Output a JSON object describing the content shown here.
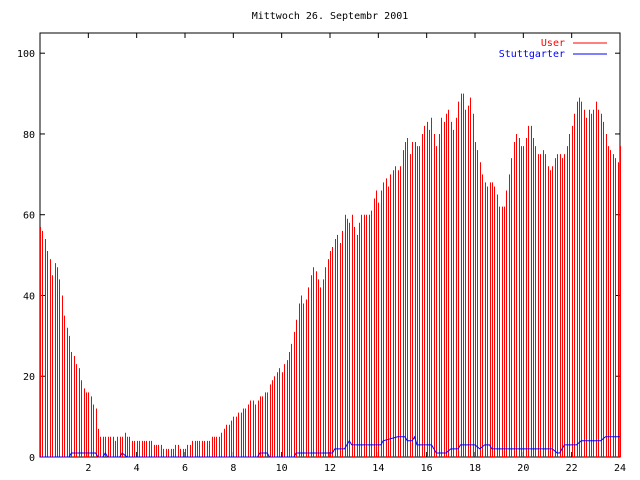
{
  "chart_data": {
    "type": "line",
    "title": "Mittwoch 26. Septembr 2001",
    "xlabel": "",
    "ylabel": "",
    "xlim": [
      0,
      24
    ],
    "ylim": [
      0,
      105
    ],
    "xticks": [
      2,
      4,
      6,
      8,
      10,
      12,
      14,
      16,
      18,
      20,
      22,
      24
    ],
    "yticks": [
      0,
      20,
      40,
      60,
      80,
      100
    ],
    "grid": false,
    "legend_position": "top-right",
    "series": [
      {
        "name": "User",
        "style": "impulses",
        "color": "#ff0000",
        "points": [
          [
            0.0,
            57
          ],
          [
            0.1,
            56
          ],
          [
            0.2,
            54
          ],
          [
            0.3,
            51
          ],
          [
            0.4,
            49
          ],
          [
            0.5,
            45
          ],
          [
            0.6,
            48
          ],
          [
            0.7,
            47
          ],
          [
            0.8,
            44
          ],
          [
            0.9,
            40
          ],
          [
            1.0,
            35
          ],
          [
            1.1,
            32
          ],
          [
            1.2,
            30
          ],
          [
            1.3,
            26
          ],
          [
            1.4,
            25
          ],
          [
            1.5,
            23
          ],
          [
            1.6,
            22
          ],
          [
            1.7,
            19
          ],
          [
            1.8,
            17
          ],
          [
            1.9,
            16
          ],
          [
            2.0,
            16
          ],
          [
            2.1,
            15
          ],
          [
            2.2,
            13
          ],
          [
            2.3,
            12
          ],
          [
            2.4,
            7
          ],
          [
            2.5,
            5
          ],
          [
            2.6,
            5
          ],
          [
            2.7,
            5
          ],
          [
            2.8,
            5
          ],
          [
            2.9,
            5
          ],
          [
            3.0,
            5
          ],
          [
            3.1,
            4
          ],
          [
            3.2,
            5
          ],
          [
            3.3,
            5
          ],
          [
            3.4,
            5
          ],
          [
            3.5,
            6
          ],
          [
            3.6,
            5
          ],
          [
            3.7,
            5
          ],
          [
            3.8,
            4
          ],
          [
            3.9,
            4
          ],
          [
            4.0,
            4
          ],
          [
            4.1,
            4
          ],
          [
            4.2,
            4
          ],
          [
            4.3,
            4
          ],
          [
            4.4,
            4
          ],
          [
            4.5,
            4
          ],
          [
            4.6,
            4
          ],
          [
            4.7,
            3
          ],
          [
            4.8,
            3
          ],
          [
            4.9,
            3
          ],
          [
            5.0,
            3
          ],
          [
            5.1,
            2
          ],
          [
            5.2,
            2
          ],
          [
            5.3,
            2
          ],
          [
            5.4,
            2
          ],
          [
            5.5,
            2
          ],
          [
            5.6,
            3
          ],
          [
            5.7,
            3
          ],
          [
            5.8,
            2
          ],
          [
            5.9,
            2
          ],
          [
            6.0,
            2
          ],
          [
            6.1,
            3
          ],
          [
            6.2,
            3
          ],
          [
            6.3,
            4
          ],
          [
            6.4,
            4
          ],
          [
            6.5,
            4
          ],
          [
            6.6,
            4
          ],
          [
            6.7,
            4
          ],
          [
            6.8,
            4
          ],
          [
            6.9,
            4
          ],
          [
            7.0,
            4
          ],
          [
            7.1,
            5
          ],
          [
            7.2,
            5
          ],
          [
            7.3,
            5
          ],
          [
            7.4,
            5
          ],
          [
            7.5,
            6
          ],
          [
            7.6,
            7
          ],
          [
            7.7,
            8
          ],
          [
            7.8,
            8
          ],
          [
            7.9,
            9
          ],
          [
            8.0,
            10
          ],
          [
            8.1,
            10
          ],
          [
            8.2,
            11
          ],
          [
            8.3,
            11
          ],
          [
            8.4,
            12
          ],
          [
            8.5,
            12
          ],
          [
            8.6,
            13
          ],
          [
            8.7,
            14
          ],
          [
            8.8,
            14
          ],
          [
            8.9,
            13
          ],
          [
            9.0,
            14
          ],
          [
            9.1,
            15
          ],
          [
            9.2,
            15
          ],
          [
            9.3,
            16
          ],
          [
            9.4,
            16
          ],
          [
            9.5,
            18
          ],
          [
            9.6,
            19
          ],
          [
            9.7,
            20
          ],
          [
            9.8,
            21
          ],
          [
            9.9,
            22
          ],
          [
            10.0,
            21
          ],
          [
            10.1,
            23
          ],
          [
            10.2,
            24
          ],
          [
            10.3,
            26
          ],
          [
            10.4,
            28
          ],
          [
            10.5,
            31
          ],
          [
            10.6,
            34
          ],
          [
            10.7,
            38
          ],
          [
            10.8,
            40
          ],
          [
            10.9,
            38
          ],
          [
            11.0,
            39
          ],
          [
            11.1,
            42
          ],
          [
            11.2,
            45
          ],
          [
            11.3,
            47
          ],
          [
            11.4,
            46
          ],
          [
            11.5,
            44
          ],
          [
            11.6,
            42
          ],
          [
            11.7,
            44
          ],
          [
            11.8,
            47
          ],
          [
            11.9,
            49
          ],
          [
            12.0,
            51
          ],
          [
            12.1,
            52
          ],
          [
            12.2,
            54
          ],
          [
            12.3,
            55
          ],
          [
            12.4,
            53
          ],
          [
            12.5,
            56
          ],
          [
            12.6,
            60
          ],
          [
            12.7,
            59
          ],
          [
            12.8,
            58
          ],
          [
            12.9,
            60
          ],
          [
            13.0,
            57
          ],
          [
            13.1,
            55
          ],
          [
            13.2,
            58
          ],
          [
            13.3,
            60
          ],
          [
            13.4,
            60
          ],
          [
            13.5,
            60
          ],
          [
            13.6,
            60
          ],
          [
            13.7,
            61
          ],
          [
            13.8,
            64
          ],
          [
            13.9,
            66
          ],
          [
            14.0,
            63
          ],
          [
            14.1,
            66
          ],
          [
            14.2,
            68
          ],
          [
            14.3,
            69
          ],
          [
            14.4,
            67
          ],
          [
            14.5,
            70
          ],
          [
            14.6,
            71
          ],
          [
            14.7,
            72
          ],
          [
            14.8,
            71
          ],
          [
            14.9,
            72
          ],
          [
            15.0,
            76
          ],
          [
            15.1,
            78
          ],
          [
            15.2,
            79
          ],
          [
            15.3,
            75
          ],
          [
            15.4,
            78
          ],
          [
            15.5,
            78
          ],
          [
            15.6,
            77
          ],
          [
            15.7,
            77
          ],
          [
            15.8,
            80
          ],
          [
            15.9,
            82
          ],
          [
            16.0,
            83
          ],
          [
            16.1,
            81
          ],
          [
            16.2,
            84
          ],
          [
            16.3,
            80
          ],
          [
            16.4,
            77
          ],
          [
            16.5,
            80
          ],
          [
            16.6,
            84
          ],
          [
            16.7,
            83
          ],
          [
            16.8,
            85
          ],
          [
            16.9,
            86
          ],
          [
            17.0,
            83
          ],
          [
            17.1,
            81
          ],
          [
            17.2,
            84
          ],
          [
            17.3,
            88
          ],
          [
            17.4,
            90
          ],
          [
            17.5,
            90
          ],
          [
            17.6,
            86
          ],
          [
            17.7,
            87
          ],
          [
            17.8,
            89
          ],
          [
            17.9,
            85
          ],
          [
            18.0,
            78
          ],
          [
            18.1,
            76
          ],
          [
            18.2,
            73
          ],
          [
            18.3,
            70
          ],
          [
            18.4,
            68
          ],
          [
            18.5,
            67
          ],
          [
            18.6,
            68
          ],
          [
            18.7,
            68
          ],
          [
            18.8,
            67
          ],
          [
            18.9,
            65
          ],
          [
            19.0,
            62
          ],
          [
            19.1,
            62
          ],
          [
            19.2,
            62
          ],
          [
            19.3,
            66
          ],
          [
            19.4,
            70
          ],
          [
            19.5,
            74
          ],
          [
            19.6,
            78
          ],
          [
            19.7,
            80
          ],
          [
            19.8,
            79
          ],
          [
            19.9,
            77
          ],
          [
            20.0,
            77
          ],
          [
            20.1,
            79
          ],
          [
            20.2,
            82
          ],
          [
            20.3,
            82
          ],
          [
            20.4,
            79
          ],
          [
            20.5,
            77
          ],
          [
            20.6,
            75
          ],
          [
            20.7,
            75
          ],
          [
            20.8,
            76
          ],
          [
            20.9,
            75
          ],
          [
            21.0,
            72
          ],
          [
            21.1,
            71
          ],
          [
            21.2,
            72
          ],
          [
            21.3,
            74
          ],
          [
            21.4,
            75
          ],
          [
            21.5,
            75
          ],
          [
            21.6,
            74
          ],
          [
            21.7,
            75
          ],
          [
            21.8,
            77
          ],
          [
            21.9,
            80
          ],
          [
            22.0,
            82
          ],
          [
            22.1,
            85
          ],
          [
            22.2,
            88
          ],
          [
            22.3,
            89
          ],
          [
            22.4,
            88
          ],
          [
            22.5,
            86
          ],
          [
            22.6,
            84
          ],
          [
            22.7,
            86
          ],
          [
            22.8,
            85
          ],
          [
            22.9,
            86
          ],
          [
            23.0,
            88
          ],
          [
            23.1,
            86
          ],
          [
            23.2,
            85
          ],
          [
            23.3,
            83
          ],
          [
            23.4,
            80
          ],
          [
            23.5,
            77
          ],
          [
            23.6,
            76
          ],
          [
            23.7,
            75
          ],
          [
            23.8,
            74
          ],
          [
            23.9,
            73
          ],
          [
            24.0,
            77
          ]
        ]
      },
      {
        "name": "Stuttgarter",
        "style": "line",
        "color": "#0000ff",
        "points": [
          [
            0.0,
            0
          ],
          [
            1.2,
            0
          ],
          [
            1.3,
            1
          ],
          [
            2.3,
            1
          ],
          [
            2.4,
            0
          ],
          [
            2.6,
            0
          ],
          [
            2.7,
            1
          ],
          [
            2.8,
            0
          ],
          [
            3.3,
            0
          ],
          [
            3.4,
            1
          ],
          [
            3.6,
            0
          ],
          [
            9.0,
            0
          ],
          [
            9.1,
            1
          ],
          [
            9.4,
            1
          ],
          [
            9.5,
            0
          ],
          [
            10.5,
            0
          ],
          [
            10.6,
            1
          ],
          [
            12.1,
            1
          ],
          [
            12.2,
            2
          ],
          [
            12.6,
            2
          ],
          [
            12.8,
            4
          ],
          [
            12.9,
            3
          ],
          [
            14.1,
            3
          ],
          [
            14.2,
            4
          ],
          [
            14.8,
            5
          ],
          [
            15.1,
            5
          ],
          [
            15.2,
            4
          ],
          [
            15.4,
            4
          ],
          [
            15.5,
            5
          ],
          [
            15.6,
            3
          ],
          [
            16.2,
            3
          ],
          [
            16.3,
            2
          ],
          [
            16.4,
            1
          ],
          [
            16.8,
            1
          ],
          [
            17.0,
            2
          ],
          [
            17.3,
            2
          ],
          [
            17.4,
            3
          ],
          [
            18.0,
            3
          ],
          [
            18.2,
            2
          ],
          [
            18.4,
            3
          ],
          [
            18.6,
            3
          ],
          [
            18.7,
            2
          ],
          [
            21.2,
            2
          ],
          [
            21.4,
            1
          ],
          [
            21.5,
            1
          ],
          [
            21.7,
            3
          ],
          [
            22.2,
            3
          ],
          [
            22.4,
            4
          ],
          [
            23.2,
            4
          ],
          [
            23.4,
            5
          ],
          [
            24.0,
            5
          ]
        ]
      }
    ]
  }
}
